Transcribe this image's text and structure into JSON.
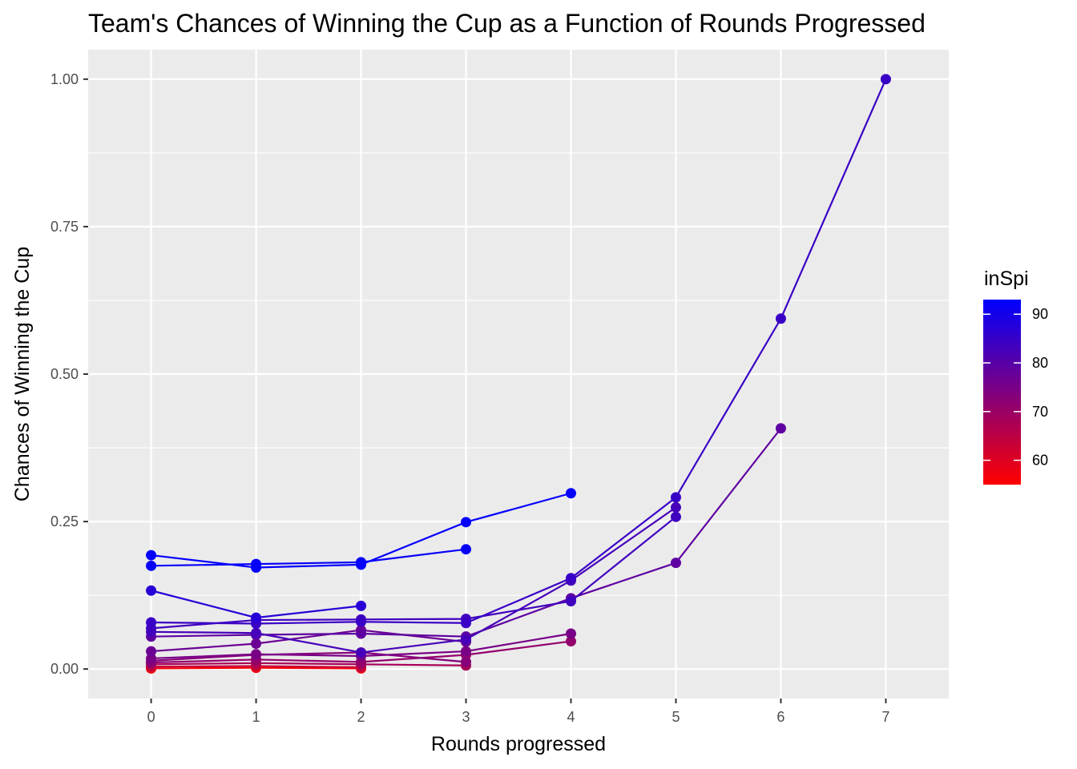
{
  "chart_data": {
    "type": "line",
    "title": "Team's Chances of Winning the Cup as a Function of Rounds Progressed",
    "xlabel": "Rounds progressed",
    "ylabel": "Chances of Winning the Cup",
    "xlim": [
      -0.6,
      7.6
    ],
    "ylim": [
      -0.05,
      1.05
    ],
    "x_ticks": [
      "0",
      "1",
      "2",
      "3",
      "4",
      "5",
      "6",
      "7"
    ],
    "y_ticks": [
      "0.00",
      "0.25",
      "0.50",
      "0.75",
      "1.00"
    ],
    "grid": true,
    "legend": {
      "title": "inSpi",
      "position": "right",
      "type": "continuous-colorbar",
      "range": [
        55,
        93
      ],
      "labels": [
        "60",
        "70",
        "80",
        "90"
      ],
      "low_color": "#ff0000",
      "high_color": "#0000ff"
    },
    "series": [
      {
        "inSpi": 92.5,
        "x": [
          0,
          1,
          2,
          3,
          4
        ],
        "y": [
          0.193,
          0.172,
          0.177,
          0.249,
          0.298
        ]
      },
      {
        "inSpi": 92.0,
        "x": [
          0,
          1,
          2,
          3
        ],
        "y": [
          0.175,
          0.178,
          0.181,
          0.203
        ]
      },
      {
        "inSpi": 87.0,
        "x": [
          0,
          1,
          2
        ],
        "y": [
          0.133,
          0.087,
          0.107
        ]
      },
      {
        "inSpi": 84.5,
        "x": [
          0,
          1,
          2,
          3,
          4,
          5,
          6,
          7
        ],
        "y": [
          0.079,
          0.077,
          0.08,
          0.078,
          0.154,
          0.291,
          0.594,
          1.0
        ]
      },
      {
        "inSpi": 83.5,
        "x": [
          0,
          1,
          2,
          3,
          4,
          5
        ],
        "y": [
          0.069,
          0.083,
          0.084,
          0.085,
          0.115,
          0.258
        ]
      },
      {
        "inSpi": 82.5,
        "x": [
          0,
          1,
          2,
          3,
          4,
          5
        ],
        "y": [
          0.063,
          0.061,
          0.028,
          0.05,
          0.15,
          0.274
        ]
      },
      {
        "inSpi": 79.0,
        "x": [
          0,
          1,
          2,
          3,
          4,
          5,
          6
        ],
        "y": [
          0.055,
          0.058,
          0.06,
          0.055,
          0.12,
          0.18,
          0.408
        ]
      },
      {
        "inSpi": 77.0,
        "x": [
          0,
          1,
          2,
          3
        ],
        "y": [
          0.03,
          0.043,
          0.066,
          0.046
        ]
      },
      {
        "inSpi": 75.0,
        "x": [
          0,
          1,
          2,
          3,
          4
        ],
        "y": [
          0.018,
          0.025,
          0.022,
          0.03,
          0.06
        ]
      },
      {
        "inSpi": 73.0,
        "x": [
          0,
          1,
          2,
          3
        ],
        "y": [
          0.014,
          0.024,
          0.028,
          0.012
        ]
      },
      {
        "inSpi": 71.0,
        "x": [
          0,
          1,
          2,
          3,
          4
        ],
        "y": [
          0.011,
          0.016,
          0.012,
          0.024,
          0.047
        ]
      },
      {
        "inSpi": 68.0,
        "x": [
          0,
          1,
          2,
          3
        ],
        "y": [
          0.008,
          0.01,
          0.008,
          0.006
        ]
      },
      {
        "inSpi": 63.0,
        "x": [
          0,
          1,
          2
        ],
        "y": [
          0.004,
          0.005,
          0.003
        ]
      },
      {
        "inSpi": 56.0,
        "x": [
          0,
          1,
          2
        ],
        "y": [
          0.001,
          0.002,
          0.001
        ]
      },
      {
        "inSpi": null,
        "x": [
          0
        ],
        "y": [
          0.001
        ]
      }
    ]
  }
}
